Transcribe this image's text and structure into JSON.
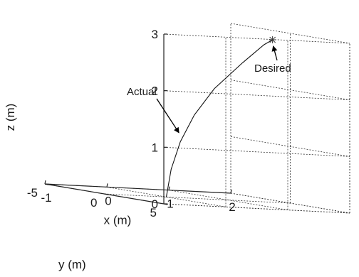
{
  "chart_data": {
    "type": "line3d",
    "title": "",
    "xlabel": "x (m)",
    "ylabel": "y (m)",
    "zlabel": "z (m)",
    "xlim": [
      -1,
      2
    ],
    "ylim": [
      -5,
      5
    ],
    "zlim": [
      0,
      3
    ],
    "xticks": [
      -1,
      0,
      1,
      2
    ],
    "yticks": [
      -5,
      0,
      5
    ],
    "zticks": [
      0,
      1,
      2,
      3
    ],
    "x_tick_labels": [
      "-1",
      "0",
      "1",
      "2"
    ],
    "y_tick_labels": [
      "-5",
      "0",
      "5"
    ],
    "z_tick_labels": [
      "0",
      "1",
      "2",
      "3"
    ],
    "grid": true,
    "series": [
      {
        "points": [
          {
            "x": 0,
            "y": 0,
            "z": 0.0
          },
          {
            "x": 0.04,
            "y": 0.2,
            "z": 0.5
          },
          {
            "x": 0.12,
            "y": 0.55,
            "z": 1.0
          },
          {
            "x": 0.25,
            "y": 1.05,
            "z": 1.5
          },
          {
            "x": 0.45,
            "y": 1.7,
            "z": 2.0
          },
          {
            "x": 0.75,
            "y": 2.5,
            "z": 2.5
          },
          {
            "x": 1.0,
            "y": 3.0,
            "z": 2.85
          },
          {
            "x": 1.1,
            "y": 3.2,
            "z": 2.95
          }
        ]
      }
    ],
    "markers": [
      {
        "x": 1.1,
        "y": 3.2,
        "z": 2.95,
        "symbol": "*"
      }
    ],
    "annotations": [
      {
        "text": "Actual",
        "target": {
          "x": 0.12,
          "y": 0.55,
          "z": 1.2
        }
      },
      {
        "text": "Desired",
        "target": {
          "x": 1.1,
          "y": 3.2,
          "z": 2.95
        }
      }
    ]
  }
}
